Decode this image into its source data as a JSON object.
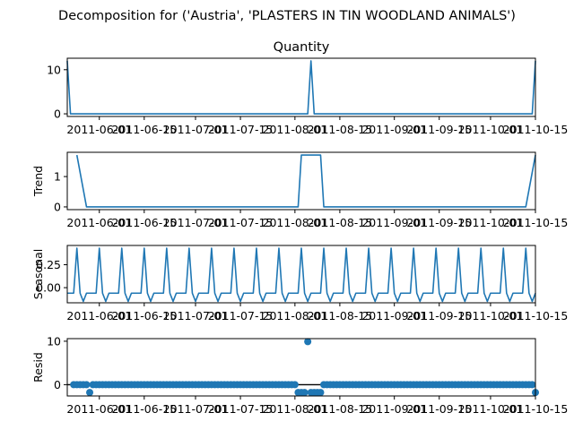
{
  "figure": {
    "suptitle": "Decomposition for ('Austria', 'PLASTERS IN TIN WOODLAND ANIMALS')"
  },
  "chart_data": [
    {
      "type": "line",
      "title": "Quantity",
      "ylabel": "",
      "ylim": [
        -0.6,
        12.6
      ],
      "yticks": [
        0,
        10
      ],
      "x_start": "2011-05-22",
      "x_end": "2011-10-15",
      "xticks": [
        "2011-06-01",
        "2011-06-15",
        "2011-07-01",
        "2011-07-15",
        "2011-08-01",
        "2011-08-15",
        "2011-09-01",
        "2011-09-15",
        "2011-10-01",
        "2011-10-15"
      ],
      "x": [
        "2011-05-22",
        "2011-05-23",
        "2011-08-05",
        "2011-08-06",
        "2011-08-07",
        "2011-10-14",
        "2011-10-15"
      ],
      "values": [
        12,
        0,
        0,
        12,
        0,
        0,
        12
      ]
    },
    {
      "type": "line",
      "title": "",
      "ylabel": "Trend",
      "ylim": [
        -0.09,
        1.8
      ],
      "yticks": [
        0,
        1
      ],
      "x_start": "2011-05-22",
      "x_end": "2011-10-15",
      "xticks": [
        "2011-06-01",
        "2011-06-15",
        "2011-07-01",
        "2011-07-15",
        "2011-08-01",
        "2011-08-15",
        "2011-09-01",
        "2011-09-15",
        "2011-10-01",
        "2011-10-15"
      ],
      "x": [
        "2011-05-25",
        "2011-05-28",
        "2011-08-02",
        "2011-08-03",
        "2011-08-09",
        "2011-08-10",
        "2011-10-11",
        "2011-10-12",
        "2011-10-15"
      ],
      "values": [
        1.71,
        0,
        0,
        1.71,
        1.71,
        0,
        0,
        0,
        1.71
      ]
    },
    {
      "type": "line",
      "title": "",
      "ylabel": "Seasonal",
      "ylim": [
        -0.165,
        0.46
      ],
      "yticks": [
        0.25,
        0.0
      ],
      "ytick_labels": [
        "0.25",
        "0.00"
      ],
      "x_start": "2011-05-22",
      "x_end": "2011-10-15",
      "xticks": [
        "2011-06-01",
        "2011-06-15",
        "2011-07-01",
        "2011-07-15",
        "2011-08-01",
        "2011-08-15",
        "2011-09-01",
        "2011-09-15",
        "2011-10-01",
        "2011-10-15"
      ],
      "period_days": 7,
      "pattern": [
        -0.06,
        -0.06,
        -0.06,
        0.43,
        -0.06,
        -0.15,
        -0.06
      ],
      "series_start": "2011-05-22",
      "series_end": "2011-10-15"
    },
    {
      "type": "scatter",
      "title": "",
      "ylabel": "Resid",
      "ylim": [
        -2.6,
        10.6
      ],
      "yticks": [
        0,
        10
      ],
      "zero_line": true,
      "x_start": "2011-05-22",
      "x_end": "2011-10-15",
      "xticks": [
        "2011-06-01",
        "2011-06-15",
        "2011-07-01",
        "2011-07-15",
        "2011-08-01",
        "2011-08-15",
        "2011-09-01",
        "2011-09-15",
        "2011-10-01",
        "2011-10-15"
      ],
      "series_start": "2011-05-24",
      "series_end": "2011-10-15",
      "baseline": 0,
      "overrides": [
        {
          "x": "2011-05-29",
          "y": -1.8
        },
        {
          "x": "2011-08-02",
          "y": -1.8
        },
        {
          "x": "2011-08-03",
          "y": -1.8
        },
        {
          "x": "2011-08-04",
          "y": -1.8
        },
        {
          "x": "2011-08-05",
          "y": 9.9
        },
        {
          "x": "2011-08-06",
          "y": -1.8
        },
        {
          "x": "2011-08-07",
          "y": -1.8
        },
        {
          "x": "2011-08-08",
          "y": -1.8
        },
        {
          "x": "2011-08-09",
          "y": -1.8
        },
        {
          "x": "2011-10-15",
          "y": -1.8
        }
      ]
    }
  ]
}
